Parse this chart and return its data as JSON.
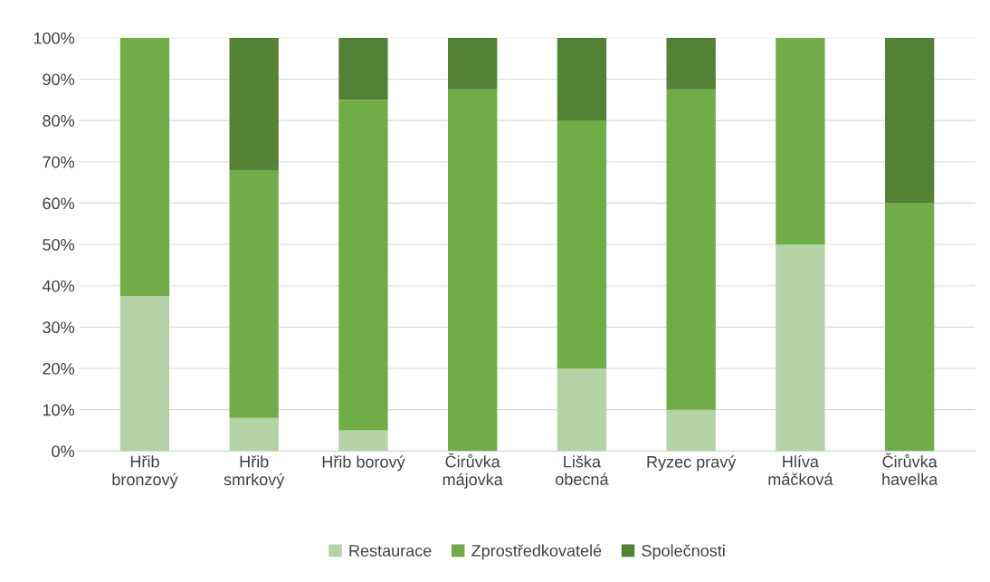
{
  "chart_data": {
    "type": "bar",
    "stacked": true,
    "categories": [
      "Hřib\nbronzový",
      "Hřib\nsmrkový",
      "Hřib borový",
      "Čirůvka\nmájovka",
      "Liška\nobecná",
      "Ryzec pravý",
      "Hlíva\nmáčková",
      "Čirůvka\nhavelka"
    ],
    "series": [
      {
        "name": "Restaurace",
        "color": "#b4d3a6",
        "values": [
          37.5,
          8,
          5,
          0,
          20,
          10,
          50,
          0
        ]
      },
      {
        "name": "Zprostředkovatelé",
        "color": "#70ad47",
        "values": [
          62.5,
          60,
          80,
          87.5,
          60,
          77.5,
          50,
          60
        ]
      },
      {
        "name": "Společnosti",
        "color": "#548235",
        "values": [
          0,
          32,
          15,
          12.5,
          20,
          12.5,
          0,
          40
        ]
      }
    ],
    "ylim": [
      0,
      100
    ],
    "yticks": [
      {
        "value": 0,
        "label": "0%"
      },
      {
        "value": 10,
        "label": "10%"
      },
      {
        "value": 20,
        "label": "20%"
      },
      {
        "value": 30,
        "label": "30%"
      },
      {
        "value": 40,
        "label": "40%"
      },
      {
        "value": 50,
        "label": "50%"
      },
      {
        "value": 60,
        "label": "60%"
      },
      {
        "value": 70,
        "label": "70%"
      },
      {
        "value": 80,
        "label": "80%"
      },
      {
        "value": 90,
        "label": "90%"
      },
      {
        "value": 100,
        "label": "100%"
      }
    ],
    "grid": "y",
    "legend": "bottom"
  }
}
